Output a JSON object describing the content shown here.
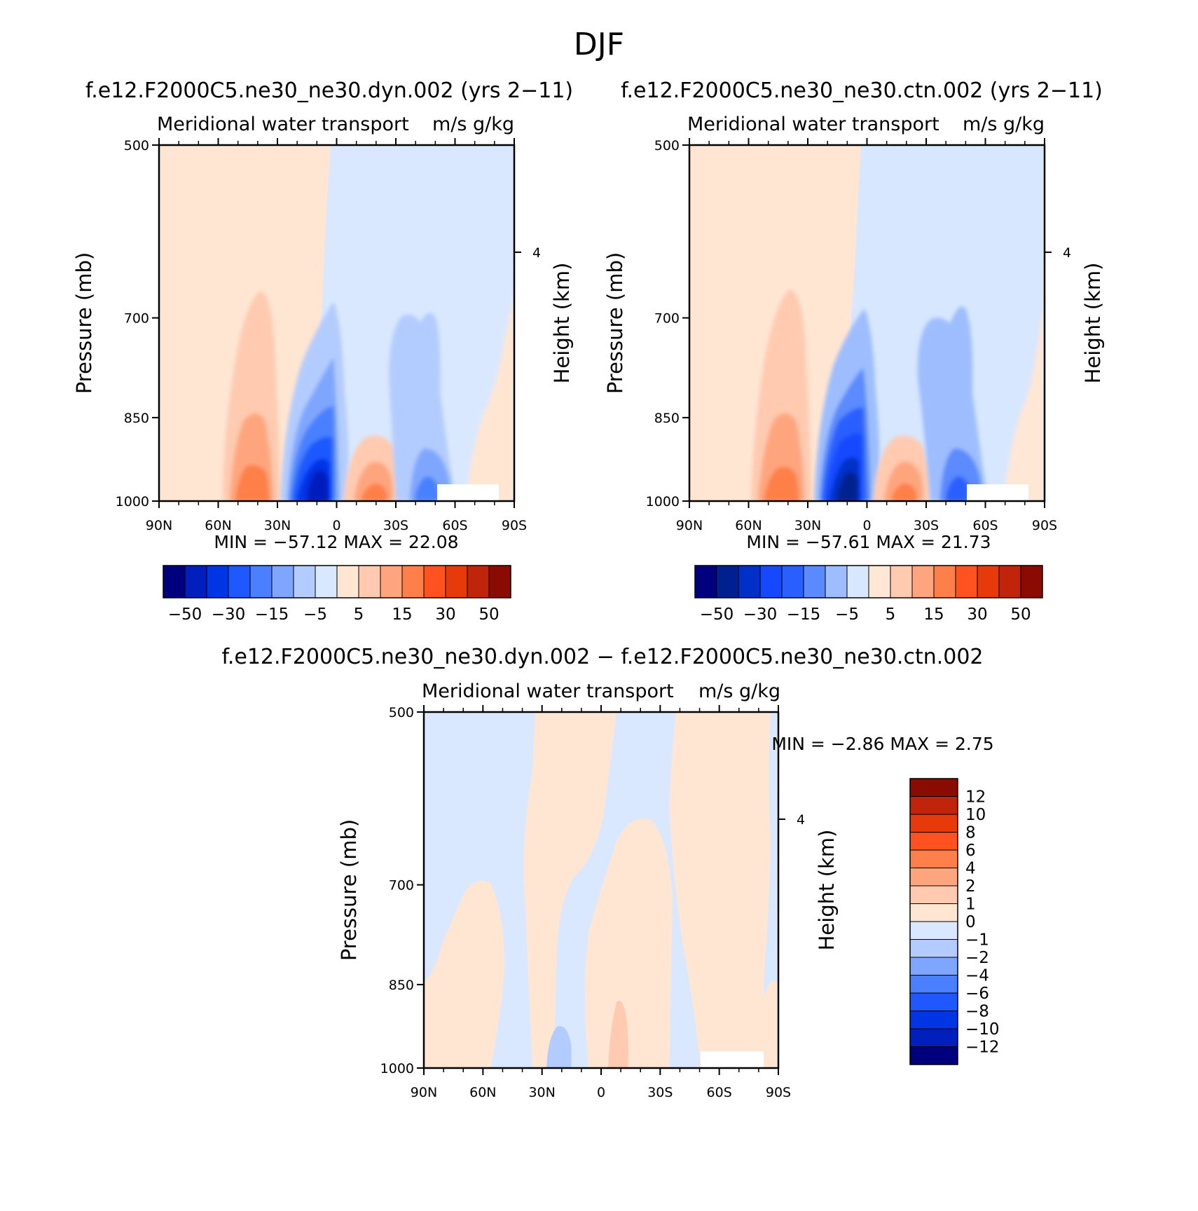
{
  "figure_title": "DJF",
  "panels": [
    {
      "title": "f.e12.F2000C5.ne30_ne30.dyn.002 (yrs 2−11)",
      "subtitle_left": "Meridional water transport",
      "subtitle_right": "m/s g/kg",
      "ylabel": "Pressure (mb)",
      "ylabel_right": "Height (km)",
      "stats": "MIN =  −57.12   MAX =   22.08"
    },
    {
      "title": "f.e12.F2000C5.ne30_ne30.ctn.002 (yrs 2−11)",
      "subtitle_left": "Meridional water transport",
      "subtitle_right": "m/s g/kg",
      "ylabel": "Pressure (mb)",
      "ylabel_right": "Height (km)",
      "stats": "MIN =  −57.61   MAX =   21.73"
    },
    {
      "title": "f.e12.F2000C5.ne30_ne30.dyn.002 − f.e12.F2000C5.ne30_ne30.ctn.002",
      "subtitle_left": "Meridional water transport",
      "subtitle_right": "m/s g/kg",
      "ylabel": "Pressure (mb)",
      "ylabel_right": "Height (km)",
      "stats": "MIN =    −2.86   MAX =     2.75"
    }
  ],
  "colors": {
    "cb1": [
      "#00007f",
      "#001fbc",
      "#0035e6",
      "#1f58ff",
      "#4a80ff",
      "#7fa6ff",
      "#b3ccff",
      "#d9e8ff",
      "#ffe6d3",
      "#ffcab0",
      "#ffa57e",
      "#ff7f4a",
      "#ff5220",
      "#e63a0b",
      "#c0250b",
      "#8a0b00"
    ],
    "cb2": [
      "#00007f",
      "#00208f",
      "#0030c8",
      "#1548ff",
      "#2a5fff",
      "#5b8aff",
      "#9dbdff",
      "#d6e7ff",
      "#ffe7d6",
      "#ffcab0",
      "#ffa57e",
      "#ff7f4a",
      "#ff5220",
      "#e63a0b",
      "#c0250b",
      "#8a0b00"
    ]
  },
  "chart_data": [
    {
      "type": "heatmap",
      "title": "f.e12.F2000C5.ne30_ne30.dyn.002 (yrs 2−11)",
      "xlabel": "",
      "ylabel": "Pressure (mb)",
      "x_ticks": [
        "90N",
        "60N",
        "30N",
        "0",
        "30S",
        "60S",
        "90S"
      ],
      "x_range": [
        90,
        -90
      ],
      "y_ticks": [
        500,
        700,
        850,
        1000
      ],
      "y_range": [
        500,
        1000
      ],
      "y_scale": "log",
      "right_axis": {
        "label": "Height (km)",
        "ticks": [
          4
        ]
      },
      "min": -57.12,
      "max": 22.08,
      "levels": [
        -50,
        -40,
        -30,
        -20,
        -15,
        -10,
        -5,
        0,
        5,
        10,
        15,
        20,
        30,
        40,
        50
      ],
      "colorbar_labels": [
        "−50",
        "−30",
        "−15",
        "−5",
        "5",
        "15",
        "30",
        "50"
      ],
      "features": [
        {
          "lat": 90,
          "p": 500,
          "lat2": 2,
          "value": 1.5
        },
        {
          "lat": 0,
          "p": 500,
          "lat2": -90,
          "value": -2.5
        },
        {
          "lat": 38,
          "p": 700,
          "value": 8
        },
        {
          "lat": 38,
          "p": 880,
          "value": 14
        },
        {
          "lat": 38,
          "p": 975,
          "value": 20
        },
        {
          "lat": 12,
          "p": 900,
          "value": -30
        },
        {
          "lat": 10,
          "p": 985,
          "value": -57.12
        },
        {
          "lat": -20,
          "p": 940,
          "value": 14
        },
        {
          "lat": -40,
          "p": 750,
          "value": -8
        },
        {
          "lat": -45,
          "p": 960,
          "value": -20
        }
      ]
    },
    {
      "type": "heatmap",
      "title": "f.e12.F2000C5.ne30_ne30.ctn.002 (yrs 2−11)",
      "xlabel": "",
      "ylabel": "Pressure (mb)",
      "x_ticks": [
        "90N",
        "60N",
        "30N",
        "0",
        "30S",
        "60S",
        "90S"
      ],
      "x_range": [
        90,
        -90
      ],
      "y_ticks": [
        500,
        700,
        850,
        1000
      ],
      "y_range": [
        500,
        1000
      ],
      "y_scale": "log",
      "right_axis": {
        "label": "Height (km)",
        "ticks": [
          4
        ]
      },
      "min": -57.61,
      "max": 21.73,
      "levels": [
        -50,
        -40,
        -30,
        -20,
        -15,
        -10,
        -5,
        0,
        5,
        10,
        15,
        20,
        30,
        40,
        50
      ],
      "colorbar_labels": [
        "−50",
        "−30",
        "−15",
        "−5",
        "5",
        "15",
        "30",
        "50"
      ],
      "features": [
        {
          "lat": 90,
          "p": 500,
          "lat2": 2,
          "value": 1.5
        },
        {
          "lat": 0,
          "p": 500,
          "lat2": -90,
          "value": -2.5
        },
        {
          "lat": 38,
          "p": 700,
          "value": 8
        },
        {
          "lat": 38,
          "p": 880,
          "value": 14
        },
        {
          "lat": 40,
          "p": 975,
          "value": 20
        },
        {
          "lat": 12,
          "p": 900,
          "value": -30
        },
        {
          "lat": 10,
          "p": 985,
          "value": -57.61
        },
        {
          "lat": -20,
          "p": 940,
          "value": 14
        },
        {
          "lat": -40,
          "p": 750,
          "value": -8
        },
        {
          "lat": -48,
          "p": 960,
          "value": -20
        }
      ]
    },
    {
      "type": "heatmap",
      "title": "f.e12.F2000C5.ne30_ne30.dyn.002 − f.e12.F2000C5.ne30_ne30.ctn.002",
      "xlabel": "",
      "ylabel": "Pressure (mb)",
      "x_ticks": [
        "90N",
        "60N",
        "30N",
        "0",
        "30S",
        "60S",
        "90S"
      ],
      "x_range": [
        90,
        -90
      ],
      "y_ticks": [
        500,
        700,
        850,
        1000
      ],
      "y_range": [
        500,
        1000
      ],
      "y_scale": "log",
      "right_axis": {
        "label": "Height (km)",
        "ticks": [
          4
        ]
      },
      "min": -2.86,
      "max": 2.75,
      "levels": [
        -12,
        -10,
        -8,
        -6,
        -4,
        -2,
        -1,
        0,
        1,
        2,
        4,
        6,
        8,
        10,
        12
      ],
      "colorbar_labels": [
        "12",
        "10",
        "8",
        "6",
        "4",
        "2",
        "1",
        "0",
        "−1",
        "−2",
        "−4",
        "−6",
        "−8",
        "−10",
        "−12"
      ]
    }
  ]
}
